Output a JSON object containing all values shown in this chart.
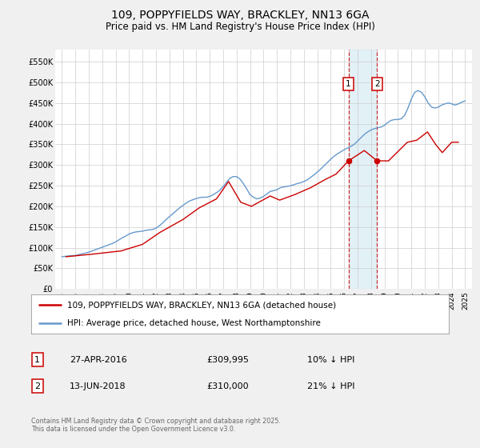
{
  "title": "109, POPPYFIELDS WAY, BRACKLEY, NN13 6GA",
  "subtitle": "Price paid vs. HM Land Registry's House Price Index (HPI)",
  "title_fontsize": 10,
  "subtitle_fontsize": 8.5,
  "bg_color": "#f0f0f0",
  "plot_bg_color": "#ffffff",
  "grid_color": "#cccccc",
  "legend_label_red": "109, POPPYFIELDS WAY, BRACKLEY, NN13 6GA (detached house)",
  "legend_label_blue": "HPI: Average price, detached house, West Northamptonshire",
  "footnote": "Contains HM Land Registry data © Crown copyright and database right 2025.\nThis data is licensed under the Open Government Licence v3.0.",
  "red_color": "#cc0000",
  "blue_color": "#6699cc",
  "marker1_date": 2016.32,
  "marker2_date": 2018.45,
  "marker1_price": 309995,
  "marker2_price": 310000,
  "transaction1_date": "27-APR-2016",
  "transaction1_price": "£309,995",
  "transaction1_hpi": "10% ↓ HPI",
  "transaction2_date": "13-JUN-2018",
  "transaction2_price": "£310,000",
  "transaction2_hpi": "21% ↓ HPI",
  "ylim_min": 0,
  "ylim_max": 580000,
  "ytick_values": [
    0,
    50000,
    100000,
    150000,
    200000,
    250000,
    300000,
    350000,
    400000,
    450000,
    500000,
    550000
  ],
  "ytick_labels": [
    "£0",
    "£50K",
    "£100K",
    "£150K",
    "£200K",
    "£250K",
    "£300K",
    "£350K",
    "£400K",
    "£450K",
    "£500K",
    "£550K"
  ],
  "xlim_min": 1994.5,
  "xlim_max": 2025.5,
  "xtick_values": [
    1995,
    1996,
    1997,
    1998,
    1999,
    2000,
    2001,
    2002,
    2003,
    2004,
    2005,
    2006,
    2007,
    2008,
    2009,
    2010,
    2011,
    2012,
    2013,
    2014,
    2015,
    2016,
    2017,
    2018,
    2019,
    2020,
    2021,
    2022,
    2023,
    2024,
    2025
  ],
  "hpi_x": [
    1995.0,
    1995.25,
    1995.5,
    1995.75,
    1996.0,
    1996.25,
    1996.5,
    1996.75,
    1997.0,
    1997.25,
    1997.5,
    1997.75,
    1998.0,
    1998.25,
    1998.5,
    1998.75,
    1999.0,
    1999.25,
    1999.5,
    1999.75,
    2000.0,
    2000.25,
    2000.5,
    2000.75,
    2001.0,
    2001.25,
    2001.5,
    2001.75,
    2002.0,
    2002.25,
    2002.5,
    2002.75,
    2003.0,
    2003.25,
    2003.5,
    2003.75,
    2004.0,
    2004.25,
    2004.5,
    2004.75,
    2005.0,
    2005.25,
    2005.5,
    2005.75,
    2006.0,
    2006.25,
    2006.5,
    2006.75,
    2007.0,
    2007.25,
    2007.5,
    2007.75,
    2008.0,
    2008.25,
    2008.5,
    2008.75,
    2009.0,
    2009.25,
    2009.5,
    2009.75,
    2010.0,
    2010.25,
    2010.5,
    2010.75,
    2011.0,
    2011.25,
    2011.5,
    2011.75,
    2012.0,
    2012.25,
    2012.5,
    2012.75,
    2013.0,
    2013.25,
    2013.5,
    2013.75,
    2014.0,
    2014.25,
    2014.5,
    2014.75,
    2015.0,
    2015.25,
    2015.5,
    2015.75,
    2016.0,
    2016.25,
    2016.5,
    2016.75,
    2017.0,
    2017.25,
    2017.5,
    2017.75,
    2018.0,
    2018.25,
    2018.5,
    2018.75,
    2019.0,
    2019.25,
    2019.5,
    2019.75,
    2020.0,
    2020.25,
    2020.5,
    2020.75,
    2021.0,
    2021.25,
    2021.5,
    2021.75,
    2022.0,
    2022.25,
    2022.5,
    2022.75,
    2023.0,
    2023.25,
    2023.5,
    2023.75,
    2024.0,
    2024.25,
    2024.5,
    2024.75,
    2025.0
  ],
  "hpi_y": [
    78000,
    79000,
    80000,
    80500,
    81000,
    83000,
    85000,
    87000,
    89000,
    92000,
    95000,
    98000,
    101000,
    104000,
    107000,
    110000,
    114000,
    119000,
    124000,
    128000,
    133000,
    136000,
    138000,
    139000,
    140000,
    142000,
    143000,
    144000,
    147000,
    153000,
    160000,
    168000,
    175000,
    182000,
    189000,
    196000,
    202000,
    208000,
    213000,
    216000,
    219000,
    221000,
    222000,
    222000,
    224000,
    228000,
    233000,
    239000,
    248000,
    258000,
    268000,
    272000,
    272000,
    266000,
    255000,
    242000,
    228000,
    222000,
    218000,
    220000,
    224000,
    230000,
    236000,
    238000,
    240000,
    245000,
    247000,
    248000,
    250000,
    252000,
    255000,
    257000,
    260000,
    264000,
    270000,
    276000,
    283000,
    290000,
    298000,
    306000,
    314000,
    321000,
    327000,
    332000,
    337000,
    341000,
    345000,
    350000,
    358000,
    366000,
    374000,
    380000,
    385000,
    388000,
    390000,
    392000,
    396000,
    403000,
    408000,
    410000,
    410000,
    412000,
    420000,
    438000,
    460000,
    476000,
    480000,
    476000,
    465000,
    450000,
    440000,
    438000,
    440000,
    445000,
    448000,
    450000,
    448000,
    445000,
    448000,
    452000,
    455000
  ],
  "price_x": [
    1995.3,
    1997.2,
    1999.4,
    2001.0,
    2002.3,
    2004.0,
    2005.2,
    2006.5,
    2007.4,
    2008.3,
    2009.1,
    2010.5,
    2011.2,
    2012.3,
    2013.5,
    2014.6,
    2015.4,
    2016.32,
    2017.5,
    2018.45,
    2019.3,
    2020.7,
    2021.4,
    2022.2,
    2022.8,
    2023.3,
    2024.0,
    2024.5
  ],
  "price_y": [
    78000,
    84000,
    92000,
    108000,
    137000,
    168000,
    196000,
    218000,
    260000,
    210000,
    200000,
    225000,
    215000,
    228000,
    245000,
    265000,
    278000,
    309995,
    335000,
    310000,
    310000,
    355000,
    360000,
    380000,
    350000,
    330000,
    355000,
    355000
  ]
}
